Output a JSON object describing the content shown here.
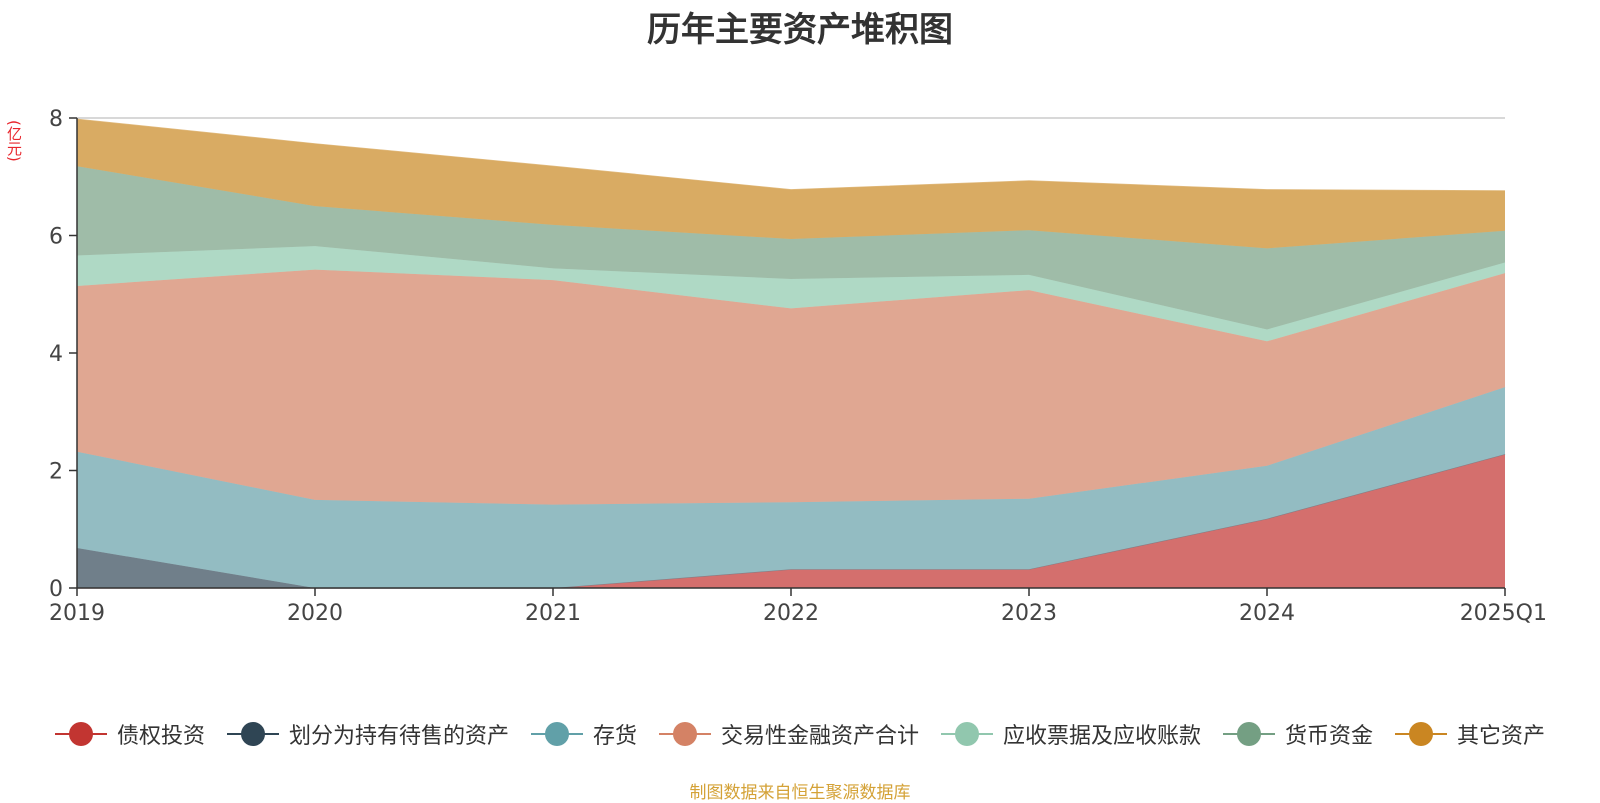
{
  "chart_data": {
    "type": "area",
    "stacked": true,
    "title": "历年主要资产堆积图",
    "ylabel": "(亿元)",
    "xlabel": "",
    "ylim": [
      0,
      8
    ],
    "yticks": [
      0,
      2,
      4,
      6,
      8
    ],
    "categories": [
      "2019",
      "2020",
      "2021",
      "2022",
      "2023",
      "2024",
      "2025Q1"
    ],
    "series": [
      {
        "name": "债权投资",
        "color": "#c23531",
        "fill": "#d46f6d",
        "values": [
          0,
          0,
          0,
          0.32,
          0.32,
          1.18,
          2.28
        ]
      },
      {
        "name": "划分为持有待售的资产",
        "color": "#2f4554",
        "fill": "#707f8a",
        "values": [
          0.68,
          0,
          0,
          0,
          0,
          0,
          0
        ]
      },
      {
        "name": "存货",
        "color": "#61a0a8",
        "fill": "#93bcc2",
        "values": [
          1.64,
          1.5,
          1.42,
          1.14,
          1.2,
          0.9,
          1.14
        ]
      },
      {
        "name": "交易性金融资产合计",
        "color": "#d48265",
        "fill": "#e0a792",
        "values": [
          2.82,
          3.92,
          3.82,
          3.3,
          3.55,
          2.12,
          1.94
        ]
      },
      {
        "name": "应收票据及应收账款",
        "color": "#91c7ae",
        "fill": "#afd9c5",
        "values": [
          0.52,
          0.4,
          0.2,
          0.5,
          0.26,
          0.2,
          0.18
        ]
      },
      {
        "name": "货币资金",
        "color": "#749f83",
        "fill": "#9fbca8",
        "values": [
          1.52,
          0.68,
          0.74,
          0.68,
          0.76,
          1.38,
          0.54
        ]
      },
      {
        "name": "其它资产",
        "color": "#ca8622",
        "fill": "#d9ab63",
        "values": [
          0.8,
          1.06,
          1.0,
          0.84,
          0.84,
          1.0,
          0.68
        ]
      }
    ],
    "legend_position": "bottom",
    "grid": true
  },
  "source_note": "制图数据来自恒生聚源数据库"
}
